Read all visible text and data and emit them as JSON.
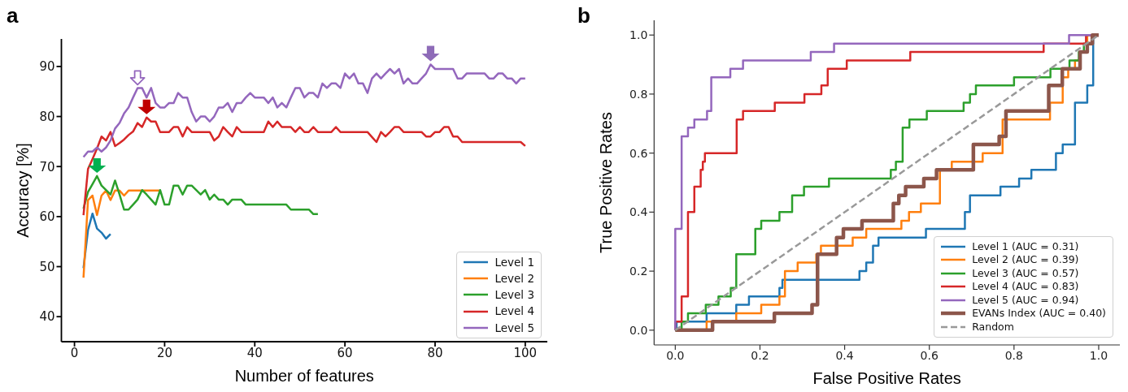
{
  "chart_data": [
    {
      "type": "line",
      "title": "a",
      "xlabel": "Number of features",
      "ylabel": "Accuracy [%]",
      "xlim": [
        -2.9,
        104.9
      ],
      "ylim": [
        35,
        95.5
      ],
      "xticks": [
        0,
        20,
        40,
        60,
        80,
        100
      ],
      "yticks": [
        40,
        50,
        60,
        70,
        80,
        90
      ],
      "legend": "bottom right",
      "x": [
        2,
        3,
        4,
        5,
        6,
        7,
        8,
        9,
        10,
        11,
        12,
        13,
        14,
        15,
        16,
        17,
        18,
        19,
        20,
        21,
        22,
        23,
        24,
        25,
        26,
        27,
        28,
        29,
        30,
        31,
        32,
        33,
        34,
        35,
        36,
        37,
        38,
        39,
        40,
        41,
        42,
        43,
        44,
        45,
        46,
        47,
        48,
        49,
        50,
        51,
        52,
        53,
        54,
        55,
        56,
        57,
        58,
        59,
        60,
        61,
        62,
        63,
        64,
        65,
        66,
        67,
        68,
        69,
        70,
        71,
        72,
        73,
        74,
        75,
        76,
        77,
        78,
        79,
        80,
        81,
        82,
        83,
        84,
        85,
        86,
        87,
        88,
        89,
        90,
        91,
        92,
        93,
        94,
        95,
        96,
        97,
        98,
        99,
        100
      ],
      "series": [
        {
          "name": "Level 1",
          "color": "#1f77b4",
          "x": [
            2,
            3,
            4,
            5,
            6,
            7,
            8
          ],
          "values": [
            49.7,
            57.3,
            60.6,
            57.6,
            56.8,
            55.6,
            56.5
          ]
        },
        {
          "name": "Level 2",
          "color": "#ff7f0e",
          "x": [
            2,
            3,
            4,
            5,
            6,
            7,
            8,
            9,
            10,
            11,
            12,
            13,
            14,
            15,
            16,
            17,
            18,
            19
          ],
          "values": [
            47.8,
            63.3,
            64.2,
            60.3,
            64.2,
            65.2,
            63.3,
            65.2,
            65.2,
            64.2,
            65.2,
            65.2,
            65.2,
            65.2,
            65.2,
            65.2,
            65.2,
            65.2
          ]
        },
        {
          "name": "Level 3",
          "color": "#2ca02c",
          "x": [
            2,
            3,
            4,
            5,
            6,
            7,
            8,
            9,
            10,
            11,
            12,
            13,
            14,
            15,
            16,
            17,
            18,
            19,
            20,
            21,
            22,
            23,
            24,
            25,
            26,
            27,
            28,
            29,
            30,
            31,
            32,
            33,
            34,
            35,
            36,
            37,
            38,
            39,
            40,
            41,
            42,
            43,
            44,
            45,
            46,
            47,
            48,
            49,
            50,
            51,
            52,
            53,
            54
          ],
          "values": [
            61.6,
            64.9,
            66.5,
            68.1,
            66.2,
            65.3,
            64.4,
            67.2,
            64.4,
            61.4,
            61.4,
            62.4,
            63.4,
            65.3,
            64.4,
            63.4,
            62.4,
            65.3,
            62.4,
            62.4,
            66.2,
            66.2,
            64.4,
            66.2,
            66.2,
            65.3,
            64.4,
            65.3,
            63.4,
            64.4,
            63.4,
            63.4,
            62.4,
            63.4,
            63.4,
            63.4,
            62.4,
            62.4,
            62.4,
            62.4,
            62.4,
            62.4,
            62.4,
            62.4,
            62.4,
            62.4,
            61.4,
            61.4,
            61.4,
            61.4,
            61.4,
            60.5,
            60.5
          ]
        },
        {
          "name": "Level 4",
          "color": "#d62728",
          "values": [
            60.3,
            69.5,
            71.5,
            73.6,
            76.0,
            75.2,
            76.9,
            74.1,
            74.7,
            75.4,
            76.3,
            77.0,
            78.7,
            77.9,
            79.8,
            79.0,
            79.0,
            76.9,
            76.9,
            76.9,
            77.9,
            77.9,
            76.0,
            77.9,
            76.9,
            76.9,
            76.9,
            76.9,
            76.9,
            75.2,
            76.0,
            77.9,
            76.9,
            76.0,
            77.9,
            76.9,
            76.9,
            76.9,
            76.9,
            76.9,
            76.9,
            79.0,
            77.9,
            79.0,
            77.9,
            77.9,
            77.9,
            76.9,
            77.9,
            76.9,
            76.9,
            77.9,
            76.9,
            76.9,
            76.9,
            76.9,
            77.9,
            76.9,
            76.9,
            76.9,
            76.9,
            76.9,
            76.9,
            76.9,
            75.9,
            74.9,
            76.9,
            76.0,
            76.9,
            77.9,
            77.9,
            76.9,
            76.9,
            76.9,
            76.9,
            76.9,
            76.0,
            76.0,
            76.9,
            76.9,
            77.9,
            77.9,
            76.0,
            76.0,
            74.9,
            74.9,
            74.9,
            74.9,
            74.9,
            74.9,
            74.9,
            74.9,
            74.9,
            74.9,
            74.9,
            74.9,
            74.9,
            74.9,
            74.1
          ]
        },
        {
          "name": "Level 5",
          "color": "#9467bd",
          "values": [
            71.9,
            73.0,
            73.0,
            73.8,
            73.0,
            73.8,
            75.2,
            77.6,
            78.7,
            80.6,
            81.8,
            83.8,
            85.7,
            85.7,
            83.8,
            85.7,
            82.7,
            81.8,
            81.8,
            82.7,
            82.7,
            84.7,
            83.8,
            83.8,
            80.9,
            79.0,
            80.0,
            80.0,
            79.0,
            80.0,
            81.8,
            81.8,
            82.7,
            80.9,
            82.7,
            82.7,
            83.8,
            84.7,
            83.8,
            83.8,
            83.8,
            82.7,
            83.8,
            81.8,
            82.7,
            81.8,
            83.8,
            85.7,
            85.7,
            83.8,
            84.7,
            84.7,
            83.8,
            86.6,
            85.7,
            86.6,
            86.6,
            85.7,
            88.6,
            87.6,
            88.6,
            86.6,
            86.6,
            84.7,
            87.6,
            88.6,
            87.6,
            88.6,
            89.5,
            88.6,
            89.5,
            86.6,
            87.6,
            86.6,
            86.6,
            87.6,
            88.6,
            90.4,
            89.5,
            89.5,
            89.5,
            89.5,
            89.5,
            87.6,
            87.6,
            88.6,
            88.6,
            88.6,
            88.6,
            88.6,
            87.6,
            87.6,
            88.6,
            88.6,
            87.6,
            87.6,
            86.6,
            87.6,
            87.6
          ]
        }
      ]
    },
    {
      "type": "step",
      "title": "b",
      "xlabel": "False Positive Rates",
      "ylabel": "True Positive Rates",
      "xlim": [
        -0.05,
        1.05
      ],
      "ylim": [
        -0.05,
        1.05
      ],
      "xticks": [
        {
          "value": 0,
          "label": "0.0"
        },
        0.2,
        0.4,
        0.6,
        0.8,
        {
          "value": 1,
          "label": "1.0"
        }
      ],
      "yticks": [
        {
          "value": 0,
          "label": "0.0"
        },
        0.2,
        0.4,
        0.6,
        0.8,
        {
          "value": 1,
          "label": "1.0"
        }
      ],
      "legend": "bottom right",
      "series": [
        {
          "name": "Level 1 (AUC = 0.31)",
          "color": "#1f77b4",
          "x": [
            0,
            0.003,
            0.074,
            0.144,
            0.174,
            0.246,
            0.253,
            0.435,
            0.451,
            0.467,
            0.48,
            0.592,
            0.684,
            0.696,
            0.768,
            0.812,
            0.841,
            0.899,
            0.915,
            0.944,
            0.973,
            0.987,
            1.0
          ],
          "values": [
            0,
            0.029,
            0.057,
            0.086,
            0.114,
            0.143,
            0.171,
            0.2,
            0.229,
            0.286,
            0.314,
            0.343,
            0.4,
            0.457,
            0.486,
            0.514,
            0.543,
            0.6,
            0.629,
            0.771,
            0.829,
            1.0,
            1.0
          ]
        },
        {
          "name": "Level 2 (AUC = 0.39)",
          "color": "#ff7f0e",
          "x": [
            0,
            0.074,
            0.144,
            0.203,
            0.246,
            0.259,
            0.289,
            0.333,
            0.344,
            0.419,
            0.451,
            0.534,
            0.552,
            0.58,
            0.625,
            0.653,
            0.726,
            0.773,
            0.885,
            0.915,
            0.928,
            0.944,
            0.956,
            0.973,
            1.0
          ],
          "values": [
            0,
            0.029,
            0.057,
            0.086,
            0.114,
            0.2,
            0.229,
            0.257,
            0.286,
            0.314,
            0.343,
            0.371,
            0.4,
            0.429,
            0.543,
            0.571,
            0.6,
            0.714,
            0.771,
            0.857,
            0.886,
            0.914,
            0.943,
            1.0,
            1.0
          ]
        },
        {
          "name": "Level 3 (AUC = 0.57)",
          "color": "#2ca02c",
          "x": [
            0,
            0.015,
            0.03,
            0.072,
            0.102,
            0.131,
            0.144,
            0.189,
            0.203,
            0.246,
            0.276,
            0.304,
            0.363,
            0.509,
            0.521,
            0.537,
            0.553,
            0.594,
            0.681,
            0.696,
            0.71,
            0.8,
            0.886,
            0.931,
            0.953,
            0.965,
            0.985,
            1.0
          ],
          "values": [
            0,
            0.029,
            0.057,
            0.086,
            0.114,
            0.143,
            0.257,
            0.343,
            0.371,
            0.4,
            0.457,
            0.486,
            0.514,
            0.543,
            0.571,
            0.686,
            0.714,
            0.743,
            0.771,
            0.8,
            0.829,
            0.857,
            0.886,
            0.914,
            0.943,
            0.971,
            1.0,
            1.0
          ]
        },
        {
          "name": "Level 4 (AUC = 0.83)",
          "color": "#d62728",
          "x": [
            0,
            0,
            0.015,
            0.03,
            0.045,
            0.06,
            0.065,
            0.07,
            0.145,
            0.16,
            0.235,
            0.305,
            0.345,
            0.36,
            0.405,
            0.555,
            0.87,
            0.97,
            1.0
          ],
          "values": [
            0,
            0.029,
            0.114,
            0.4,
            0.486,
            0.543,
            0.571,
            0.6,
            0.714,
            0.743,
            0.771,
            0.8,
            0.829,
            0.886,
            0.914,
            0.943,
            0.971,
            1.0,
            1.0
          ]
        },
        {
          "name": "Level 5 (AUC = 0.94)",
          "color": "#9467bd",
          "x": [
            0,
            0,
            0.015,
            0.03,
            0.045,
            0.075,
            0.085,
            0.13,
            0.16,
            0.32,
            0.375,
            0.93,
            1.0
          ],
          "values": [
            0,
            0.343,
            0.657,
            0.686,
            0.714,
            0.743,
            0.857,
            0.886,
            0.914,
            0.943,
            0.971,
            1.0,
            1.0
          ]
        },
        {
          "name": "EVANs Index (AUC = 0.40)",
          "color": "#8c564b",
          "x": [
            0,
            0.088,
            0.234,
            0.323,
            0.336,
            0.381,
            0.397,
            0.441,
            0.515,
            0.528,
            0.544,
            0.587,
            0.617,
            0.704,
            0.765,
            0.781,
            0.882,
            0.914,
            0.956,
            0.973,
            0.985,
            1.0
          ],
          "values": [
            0,
            0.029,
            0.057,
            0.086,
            0.257,
            0.314,
            0.343,
            0.371,
            0.429,
            0.457,
            0.486,
            0.514,
            0.543,
            0.629,
            0.657,
            0.743,
            0.829,
            0.886,
            0.943,
            0.971,
            1.0,
            1.0
          ]
        },
        {
          "name": "Random",
          "type": "line",
          "color": "#999999",
          "line_style": "dashed",
          "x": [
            0,
            1
          ],
          "values": [
            0,
            1
          ]
        }
      ]
    }
  ]
}
